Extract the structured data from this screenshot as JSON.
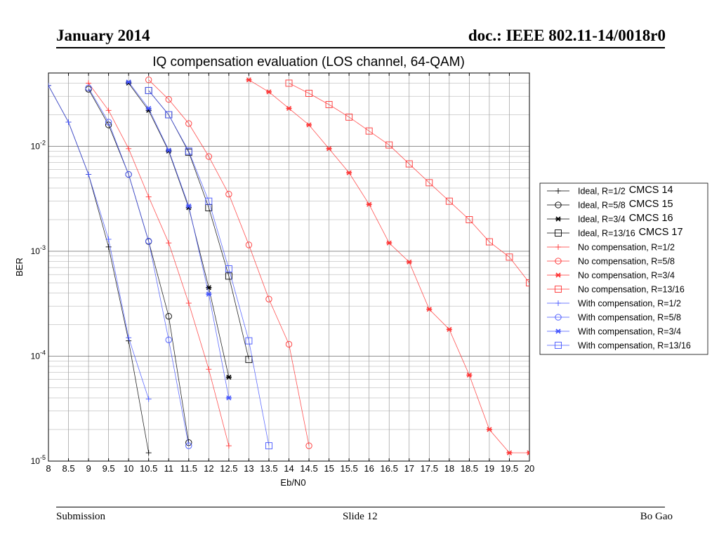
{
  "header": {
    "left": "January 2014",
    "right": "doc.: IEEE 802.11-14/0018r0"
  },
  "footer": {
    "left": "Submission",
    "center": "Slide 12",
    "right": "Bo Gao"
  },
  "chart_data": {
    "type": "line",
    "title": "IQ compensation evaluation (LOS channel, 64-QAM)",
    "xlabel": "Eb/N0",
    "ylabel": "BER",
    "yscale": "log",
    "xlim": [
      8,
      20
    ],
    "ylim": [
      1e-05,
      0.05
    ],
    "xticks": [
      "8",
      "8.5",
      "9",
      "9.5",
      "10",
      "10.5",
      "11",
      "11.5",
      "12",
      "12.5",
      "13",
      "13.5",
      "14",
      "14.5",
      "15",
      "15.5",
      "16",
      "16.5",
      "17",
      "17.5",
      "18",
      "18.5",
      "19",
      "19.5",
      "20"
    ],
    "yticks": [
      {
        "value": 0.01,
        "base": "10",
        "exp": "-2"
      },
      {
        "value": 0.001,
        "base": "10",
        "exp": "-3"
      },
      {
        "value": 0.0001,
        "base": "10",
        "exp": "-4"
      },
      {
        "value": 1e-05,
        "base": "10",
        "exp": "-5"
      }
    ],
    "grid": true,
    "legend_position": "right",
    "series": [
      {
        "name": "Ideal, R=1/2",
        "note": "CMCS 14",
        "color": "#000000",
        "marker": "plus",
        "x": [
          8,
          8.5,
          9,
          9.5,
          10,
          10.5
        ],
        "y": [
          0.038,
          0.017,
          0.0054,
          0.0011,
          0.00014,
          1.2e-05
        ]
      },
      {
        "name": "Ideal, R=5/8",
        "note": "CMCS 15",
        "color": "#000000",
        "marker": "circle",
        "x": [
          9,
          9.5,
          10,
          10.5,
          11,
          11.5
        ],
        "y": [
          0.035,
          0.016,
          0.0054,
          0.00124,
          0.00024,
          1.5e-05
        ]
      },
      {
        "name": "Ideal, R=3/4",
        "note": "CMCS 16",
        "color": "#000000",
        "marker": "star",
        "x": [
          10,
          10.5,
          11,
          11.5,
          12,
          12.5
        ],
        "y": [
          0.04,
          0.022,
          0.009,
          0.0026,
          0.00045,
          6.3e-05
        ]
      },
      {
        "name": "Ideal, R=13/16",
        "note": "CMCS 17",
        "color": "#000000",
        "marker": "square",
        "x": [
          10.5,
          11,
          11.5,
          12,
          12.5,
          13
        ],
        "y": [
          0.034,
          0.02,
          0.0088,
          0.0026,
          0.00058,
          9.3e-05
        ]
      },
      {
        "name": "No compensation, R=1/2",
        "note": "",
        "color": "#ff3333",
        "marker": "plus",
        "x": [
          9,
          9.5,
          10,
          10.5,
          11,
          11.5,
          12,
          12.5
        ],
        "y": [
          0.04,
          0.022,
          0.0095,
          0.0033,
          0.0012,
          0.00032,
          7.5e-05,
          1.4e-05
        ]
      },
      {
        "name": "No compensation, R=5/8",
        "note": "",
        "color": "#ff3333",
        "marker": "circle",
        "x": [
          10.5,
          11,
          11.5,
          12,
          12.5,
          13,
          13.5,
          14,
          14.5
        ],
        "y": [
          0.043,
          0.028,
          0.0165,
          0.008,
          0.0035,
          0.00115,
          0.00035,
          0.00013,
          1.4e-05
        ]
      },
      {
        "name": "No compensation, R=3/4",
        "note": "",
        "color": "#ff3333",
        "marker": "star",
        "x": [
          13,
          13.5,
          14,
          14.5,
          15,
          15.5,
          16,
          16.5,
          17,
          17.5,
          18,
          18.5,
          19,
          19.5,
          20
        ],
        "y": [
          0.043,
          0.033,
          0.023,
          0.016,
          0.0095,
          0.0056,
          0.0028,
          0.0012,
          0.00079,
          0.00028,
          0.00018,
          6.6e-05,
          2e-05,
          1.2e-05,
          1.2e-05
        ]
      },
      {
        "name": "No compensation, R=13/16",
        "note": "",
        "color": "#ff3333",
        "marker": "square",
        "x": [
          14,
          14.5,
          15,
          15.5,
          16,
          16.5,
          17,
          17.5,
          18,
          18.5,
          19,
          19.5,
          20
        ],
        "y": [
          0.04,
          0.032,
          0.025,
          0.019,
          0.014,
          0.0103,
          0.0068,
          0.0045,
          0.003,
          0.002,
          0.00123,
          0.00088,
          0.0005
        ]
      },
      {
        "name": "With compensation, R=1/2",
        "note": "",
        "color": "#4455ff",
        "marker": "plus",
        "x": [
          8,
          8.5,
          9,
          9.5,
          10,
          10.5
        ],
        "y": [
          0.038,
          0.017,
          0.0054,
          0.0013,
          0.00015,
          3.9e-05
        ]
      },
      {
        "name": "With compensation, R=5/8",
        "note": "",
        "color": "#4455ff",
        "marker": "circle",
        "x": [
          9,
          9.5,
          10,
          10.5,
          11,
          11.5
        ],
        "y": [
          0.036,
          0.017,
          0.0054,
          0.00125,
          0.000143,
          1.4e-05
        ]
      },
      {
        "name": "With compensation, R=3/4",
        "note": "",
        "color": "#4455ff",
        "marker": "star",
        "x": [
          10,
          10.5,
          11,
          11.5,
          12,
          12.5
        ],
        "y": [
          0.041,
          0.023,
          0.0092,
          0.0027,
          0.00039,
          4e-05
        ]
      },
      {
        "name": "With compensation, R=13/16",
        "note": "",
        "color": "#4455ff",
        "marker": "square",
        "x": [
          10.5,
          11,
          11.5,
          12,
          12.5,
          13,
          13.5
        ],
        "y": [
          0.034,
          0.02,
          0.009,
          0.003,
          0.00068,
          0.00014,
          1.4e-05
        ]
      }
    ]
  }
}
